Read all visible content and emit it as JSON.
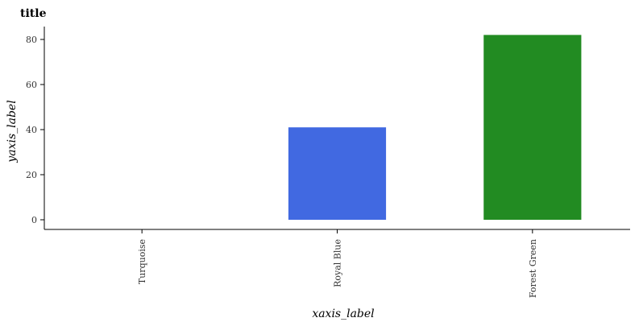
{
  "chart_data": {
    "type": "bar",
    "title": "title",
    "xlabel": "xaxis_label",
    "ylabel": "yaxis_label",
    "categories": [
      "Turquoise",
      "Royal Blue",
      "Forest Green"
    ],
    "values": [
      0,
      41,
      82
    ],
    "colors": [
      "#40E0D0",
      "#4169E1",
      "#228B22"
    ],
    "ylim": [
      0,
      86
    ],
    "yticks": [
      0,
      20,
      40,
      60,
      80
    ],
    "grid": false,
    "legend": "none"
  }
}
